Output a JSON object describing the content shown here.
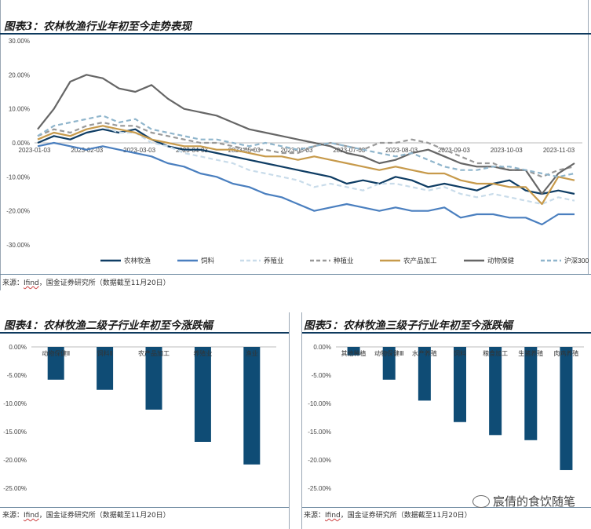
{
  "chart3": {
    "title": "图表3：农林牧渔行业年初至今走势表现",
    "source": "来源：Ifind，国金证券研究所（数据截至11月20日）",
    "source_underlined": "Ifind"
  },
  "chart4": {
    "title": "图表4：农林牧渔二级子行业年初至今涨跌幅",
    "source": "来源：Ifind，国金证券研究所（数据截至11月20日）",
    "source_underlined": "Ifind"
  },
  "chart5": {
    "title": "图表5：农林牧渔三级子行业年初至今涨跌幅",
    "source": "来源：Ifind，国金证券研究所（数据截至11月20日）",
    "source_underlined": "Ifind"
  },
  "watermark": "宸倩的食饮随笔",
  "chart_data": [
    {
      "type": "line",
      "x_tick_labels": [
        "2023-01-03",
        "2023-02-03",
        "2023-03-03",
        "2023-04-03",
        "2023-05-03",
        "2023-06-03",
        "2023-07-03",
        "2023-08-03",
        "2023-09-03",
        "2023-10-03",
        "2023-11-03"
      ],
      "y_tick_labels": [
        "30.00%",
        "20.00%",
        "10.00%",
        "0.00%",
        "-10.00%",
        "-20.00%",
        "-30.00%"
      ],
      "ylim": [
        -30,
        30
      ],
      "grid": false,
      "legend_position": "bottom",
      "series": [
        {
          "name": "农林牧渔",
          "color": "#0f3d64",
          "dash": "solid",
          "values": [
            0,
            2,
            1,
            3,
            4,
            3,
            4,
            1,
            -1,
            -2,
            -2,
            -3,
            -4,
            -5,
            -6,
            -7,
            -8,
            -9,
            -10,
            -12,
            -11,
            -12,
            -10,
            -11,
            -13,
            -12,
            -13,
            -14,
            -12,
            -11,
            -14,
            -15,
            -14,
            -15
          ]
        },
        {
          "name": "饲料",
          "color": "#4a7fbf",
          "dash": "solid",
          "values": [
            -1,
            0,
            -1,
            -2,
            -1,
            -2,
            -3,
            -4,
            -6,
            -7,
            -9,
            -10,
            -12,
            -13,
            -15,
            -16,
            -18,
            -20,
            -19,
            -18,
            -19,
            -20,
            -19,
            -20,
            -20,
            -19,
            -22,
            -21,
            -21,
            -22,
            -22,
            -24,
            -21,
            -21
          ]
        },
        {
          "name": "养殖业",
          "color": "#c9dcea",
          "dash": "dashed",
          "values": [
            1,
            3,
            2,
            4,
            5,
            3,
            3,
            0,
            -1,
            -3,
            -4,
            -5,
            -6,
            -8,
            -9,
            -10,
            -11,
            -13,
            -12,
            -13,
            -14,
            -12,
            -12,
            -13,
            -14,
            -13,
            -15,
            -16,
            -15,
            -16,
            -17,
            -18,
            -16,
            -17
          ]
        },
        {
          "name": "种植业",
          "color": "#999999",
          "dash": "dashed",
          "values": [
            2,
            4,
            3,
            5,
            6,
            5,
            5,
            3,
            2,
            1,
            0,
            0,
            -1,
            -2,
            -2,
            -3,
            -3,
            -1,
            0,
            -1,
            -2,
            0,
            0,
            1,
            0,
            -2,
            -4,
            -6,
            -6,
            -8,
            -8,
            -10,
            -8,
            -7
          ]
        },
        {
          "name": "农产品加工",
          "color": "#c79a4b",
          "dash": "solid",
          "values": [
            1,
            3,
            2,
            4,
            5,
            4,
            3,
            1,
            0,
            -1,
            -1,
            -2,
            -2,
            -3,
            -4,
            -4,
            -5,
            -4,
            -5,
            -6,
            -7,
            -8,
            -7,
            -8,
            -9,
            -9,
            -11,
            -12,
            -12,
            -13,
            -13,
            -18,
            -10,
            -11
          ]
        },
        {
          "name": "动物保健",
          "color": "#666666",
          "dash": "solid",
          "values": [
            4,
            10,
            18,
            20,
            19,
            16,
            15,
            17,
            13,
            10,
            9,
            8,
            6,
            4,
            3,
            2,
            1,
            0,
            -1,
            -3,
            -4,
            -6,
            -5,
            -3,
            -2,
            -4,
            -6,
            -7,
            -7,
            -8,
            -8,
            -15,
            -9,
            -6
          ]
        },
        {
          "name": "沪深300",
          "color": "#8fb5cc",
          "dash": "dashed",
          "values": [
            2,
            5,
            6,
            7,
            8,
            6,
            7,
            4,
            3,
            2,
            1,
            1,
            0,
            -1,
            0,
            -1,
            -2,
            -1,
            0,
            -1,
            -2,
            -3,
            -4,
            -3,
            -5,
            -7,
            -8,
            -8,
            -7,
            -7,
            -8,
            -9,
            -10,
            -9
          ]
        }
      ]
    },
    {
      "type": "bar",
      "categories": [
        "动物保健Ⅱ",
        "饲料Ⅱ",
        "农产品加工",
        "养殖业",
        "渔业"
      ],
      "values": [
        -5.8,
        -7.6,
        -11.1,
        -16.8,
        -20.8
      ],
      "ylim": [
        -25,
        0
      ],
      "y_tick_labels": [
        "0.00%",
        "-5.00%",
        "-10.00%",
        "-15.00%",
        "-20.00%",
        "-25.00%"
      ],
      "color": "#0f4c75"
    },
    {
      "type": "bar",
      "categories": [
        "其他种植",
        "动物保健Ⅲ",
        "水产养殖",
        "饲料",
        "粮食加工",
        "生猪养殖",
        "肉鸡养殖"
      ],
      "values": [
        -1.5,
        -5.8,
        -9.5,
        -13.3,
        -15.6,
        -16.5,
        -21.8
      ],
      "ylim": [
        -25,
        0
      ],
      "y_tick_labels": [
        "0.00%",
        "-5.00%",
        "-10.00%",
        "-15.00%",
        "-20.00%",
        "-25.00%"
      ],
      "color": "#0f4c75"
    }
  ]
}
